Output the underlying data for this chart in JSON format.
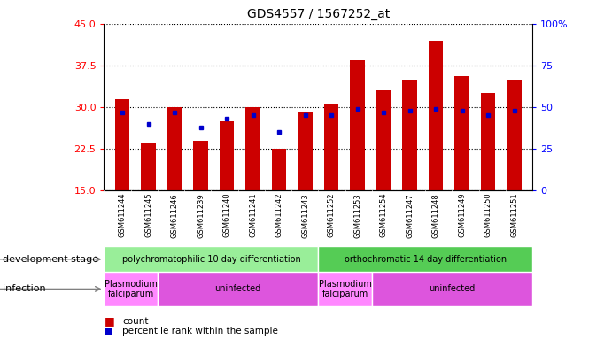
{
  "title": "GDS4557 / 1567252_at",
  "samples": [
    "GSM611244",
    "GSM611245",
    "GSM611246",
    "GSM611239",
    "GSM611240",
    "GSM611241",
    "GSM611242",
    "GSM611243",
    "GSM611252",
    "GSM611253",
    "GSM611254",
    "GSM611247",
    "GSM611248",
    "GSM611249",
    "GSM611250",
    "GSM611251"
  ],
  "count_values": [
    31.5,
    23.5,
    30.0,
    24.0,
    27.5,
    30.0,
    22.5,
    29.0,
    30.5,
    38.5,
    33.0,
    35.0,
    42.0,
    35.5,
    32.5,
    35.0
  ],
  "percentile_values_pct": [
    47,
    40,
    47,
    38,
    43,
    45,
    35,
    45,
    45,
    49,
    47,
    48,
    49,
    48,
    45,
    48
  ],
  "ylim_left": [
    15,
    45
  ],
  "ylim_right": [
    0,
    100
  ],
  "yticks_left": [
    15,
    22.5,
    30,
    37.5,
    45
  ],
  "yticks_right": [
    0,
    25,
    50,
    75,
    100
  ],
  "bar_color": "#CC0000",
  "dot_color": "#0000CC",
  "background_color": "#ffffff",
  "plot_bg_color": "#ffffff",
  "xtick_bg": "#d0d0d0",
  "dev_stage_groups": [
    {
      "label": "polychromatophilic 10 day differentiation",
      "start": 0,
      "end": 7,
      "color": "#99EE99"
    },
    {
      "label": "orthochromatic 14 day differentiation",
      "start": 8,
      "end": 15,
      "color": "#55CC55"
    }
  ],
  "infection_groups": [
    {
      "label": "Plasmodium\nfalciparum",
      "start": 0,
      "end": 1,
      "color": "#FF88FF"
    },
    {
      "label": "uninfected",
      "start": 2,
      "end": 7,
      "color": "#DD55DD"
    },
    {
      "label": "Plasmodium\nfalciparum",
      "start": 8,
      "end": 9,
      "color": "#FF88FF"
    },
    {
      "label": "uninfected",
      "start": 10,
      "end": 15,
      "color": "#DD55DD"
    }
  ],
  "legend_count_label": "count",
  "legend_percentile_label": "percentile rank within the sample",
  "dev_stage_label": "development stage",
  "infection_label": "infection",
  "bar_width": 0.55
}
